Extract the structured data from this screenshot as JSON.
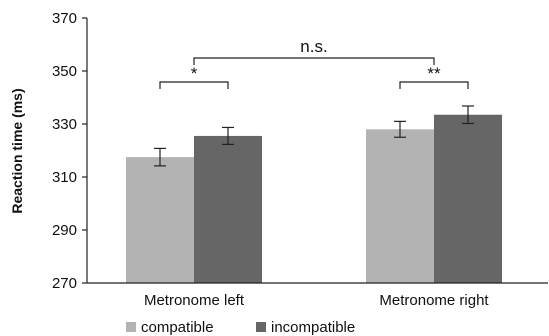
{
  "chart_data": {
    "type": "bar",
    "title": "",
    "xlabel": "",
    "ylabel": "Reaction time (ms)",
    "ylim": [
      270,
      370
    ],
    "yticks": [
      270,
      290,
      310,
      330,
      350,
      370
    ],
    "categories": [
      "Metronome left",
      "Metronome right"
    ],
    "series": [
      {
        "name": "compatible",
        "color": "#b3b3b3",
        "values": [
          317.5,
          328
        ],
        "errors": [
          3.3,
          3
        ]
      },
      {
        "name": "incompatible",
        "color": "#666666",
        "values": [
          325.5,
          333.5
        ],
        "errors": [
          3.2,
          3.3
        ]
      }
    ],
    "annotations": [
      {
        "type": "within",
        "category": 0,
        "label": "*"
      },
      {
        "type": "within",
        "category": 1,
        "label": "**"
      },
      {
        "type": "between",
        "label": "n.s."
      }
    ],
    "legend": {
      "placement": "bottom"
    },
    "grid": false
  }
}
